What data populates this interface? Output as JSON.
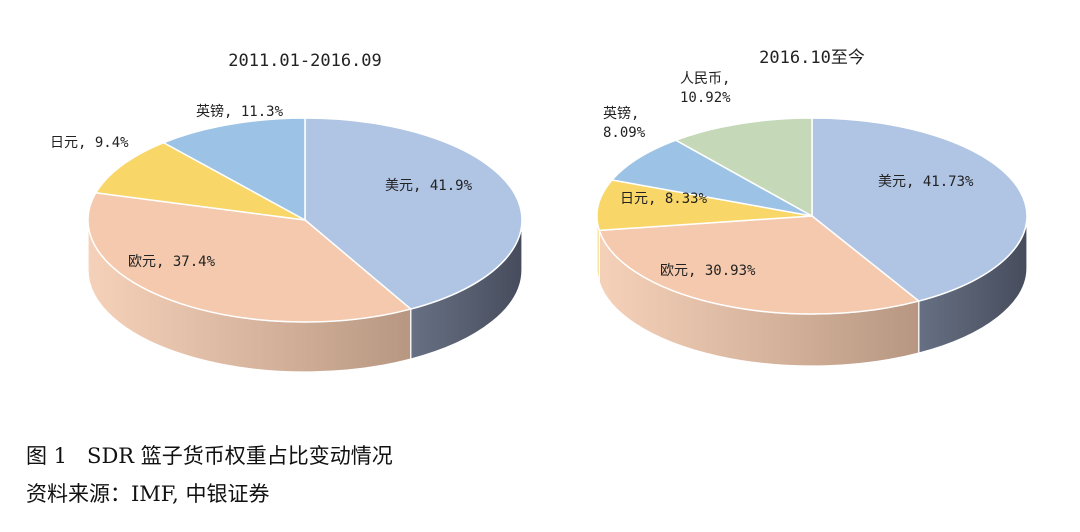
{
  "chart_data": [
    {
      "type": "pie",
      "title": "2011.01-2016.09",
      "slices": [
        {
          "label": "美元",
          "value": 41.9,
          "text": "美元, 41.9%",
          "color": "#b0c4e4",
          "side": "#464c5c"
        },
        {
          "label": "欧元",
          "value": 37.4,
          "text": "欧元, 37.4%",
          "color": "#f4c9ad",
          "side": "#9e806c"
        },
        {
          "label": "日元",
          "value": 9.4,
          "text": "日元, 9.4%",
          "color": "#f8d768",
          "side": "#9e8a44"
        },
        {
          "label": "英镑",
          "value": 11.3,
          "text": "英镑, 11.3%",
          "color": "#9cc3e6",
          "side": "#5e7a96"
        }
      ]
    },
    {
      "type": "pie",
      "title": "2016.10至今",
      "slices": [
        {
          "label": "美元",
          "value": 41.73,
          "text": "美元, 41.73%",
          "color": "#b0c4e4",
          "side": "#464c5c"
        },
        {
          "label": "欧元",
          "value": 30.93,
          "text": "欧元, 30.93%",
          "color": "#f4c9ad",
          "side": "#9e806c"
        },
        {
          "label": "日元",
          "value": 8.33,
          "text": "日元, 8.33%",
          "color": "#f8d768",
          "side": "#9e8a44"
        },
        {
          "label": "英镑",
          "value": 8.09,
          "text": "英镑,\n8.09%",
          "color": "#9cc3e6",
          "side": "#5e7a96"
        },
        {
          "label": "人民币",
          "value": 10.92,
          "text": "人民币,\n10.92%",
          "color": "#c5d9b8",
          "side": "#7e9470"
        }
      ]
    }
  ],
  "caption": {
    "figure": "图 1   SDR 篮子货币权重占比变动情况",
    "source": "资料来源：IMF, 中银证券"
  }
}
